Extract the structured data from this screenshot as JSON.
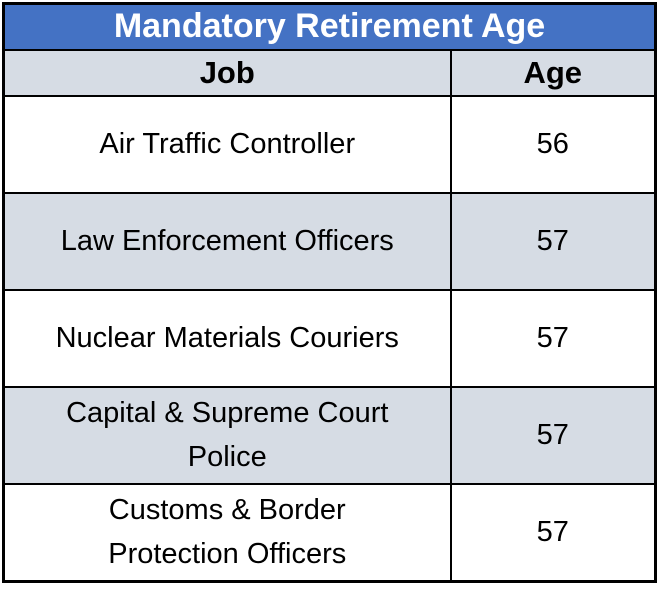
{
  "table": {
    "title": "Mandatory Retirement Age",
    "columns": [
      "Job",
      "Age"
    ],
    "rows": [
      {
        "job": "Air Traffic Controller",
        "age": "56"
      },
      {
        "job": "Law Enforcement Officers",
        "age": "57"
      },
      {
        "job": "Nuclear Materials Couriers",
        "age": "57"
      },
      {
        "job": "Capital & Supreme Court\nPolice",
        "age": "57"
      },
      {
        "job": "Customs & Border\nProtection Officers",
        "age": "57"
      }
    ],
    "colors": {
      "title_bg": "#4472C4",
      "title_text": "#FFFFFF",
      "header_bg": "#D6DCE4",
      "row_alt_bg": "#D6DCE4",
      "row_bg": "#FFFFFF",
      "border": "#000000",
      "body_text": "#000000"
    }
  },
  "chart_data": {
    "type": "table",
    "title": "Mandatory Retirement Age",
    "columns": [
      "Job",
      "Age"
    ],
    "categories": [
      "Air Traffic Controller",
      "Law Enforcement Officers",
      "Nuclear Materials Couriers",
      "Capital & Supreme Court Police",
      "Customs & Border Protection Officers"
    ],
    "values": [
      56,
      57,
      57,
      57,
      57
    ]
  }
}
